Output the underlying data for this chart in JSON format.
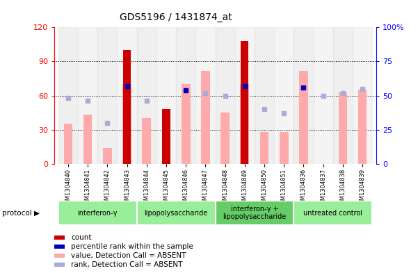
{
  "title": "GDS5196 / 1431874_at",
  "samples": [
    "GSM1304840",
    "GSM1304841",
    "GSM1304842",
    "GSM1304843",
    "GSM1304844",
    "GSM1304845",
    "GSM1304846",
    "GSM1304847",
    "GSM1304848",
    "GSM1304849",
    "GSM1304850",
    "GSM1304851",
    "GSM1304836",
    "GSM1304837",
    "GSM1304838",
    "GSM1304839"
  ],
  "count": [
    0,
    0,
    0,
    100,
    0,
    48,
    0,
    0,
    0,
    108,
    0,
    0,
    0,
    0,
    0,
    0
  ],
  "percentile_rank": [
    0,
    0,
    0,
    57,
    0,
    0,
    54,
    0,
    0,
    57,
    0,
    0,
    56,
    0,
    0,
    0
  ],
  "value_absent": [
    35,
    43,
    14,
    70,
    40,
    48,
    70,
    82,
    45,
    70,
    28,
    28,
    82,
    0,
    63,
    65
  ],
  "rank_absent": [
    48,
    46,
    30,
    0,
    46,
    0,
    0,
    52,
    50,
    0,
    40,
    37,
    0,
    50,
    52,
    55
  ],
  "groups": [
    {
      "label": "interferon-γ",
      "start": 0,
      "end": 4,
      "color": "#99ee99"
    },
    {
      "label": "lipopolysaccharide",
      "start": 4,
      "end": 8,
      "color": "#99ee99"
    },
    {
      "label": "interferon-γ +\nlipopolysaccharide",
      "start": 8,
      "end": 12,
      "color": "#66cc66"
    },
    {
      "label": "untreated control",
      "start": 12,
      "end": 16,
      "color": "#99ee99"
    }
  ],
  "left_ylim": [
    0,
    120
  ],
  "left_yticks": [
    0,
    30,
    60,
    90,
    120
  ],
  "right_ylim": [
    0,
    100
  ],
  "right_yticks": [
    0,
    25,
    50,
    75,
    100
  ],
  "color_count": "#cc0000",
  "color_percentile": "#0000bb",
  "color_value_absent": "#ffaaaa",
  "color_rank_absent": "#aaaadd",
  "legend_items": [
    {
      "label": "count",
      "color": "#cc0000"
    },
    {
      "label": "percentile rank within the sample",
      "color": "#0000bb"
    },
    {
      "label": "value, Detection Call = ABSENT",
      "color": "#ffaaaa"
    },
    {
      "label": "rank, Detection Call = ABSENT",
      "color": "#aaaadd"
    }
  ]
}
